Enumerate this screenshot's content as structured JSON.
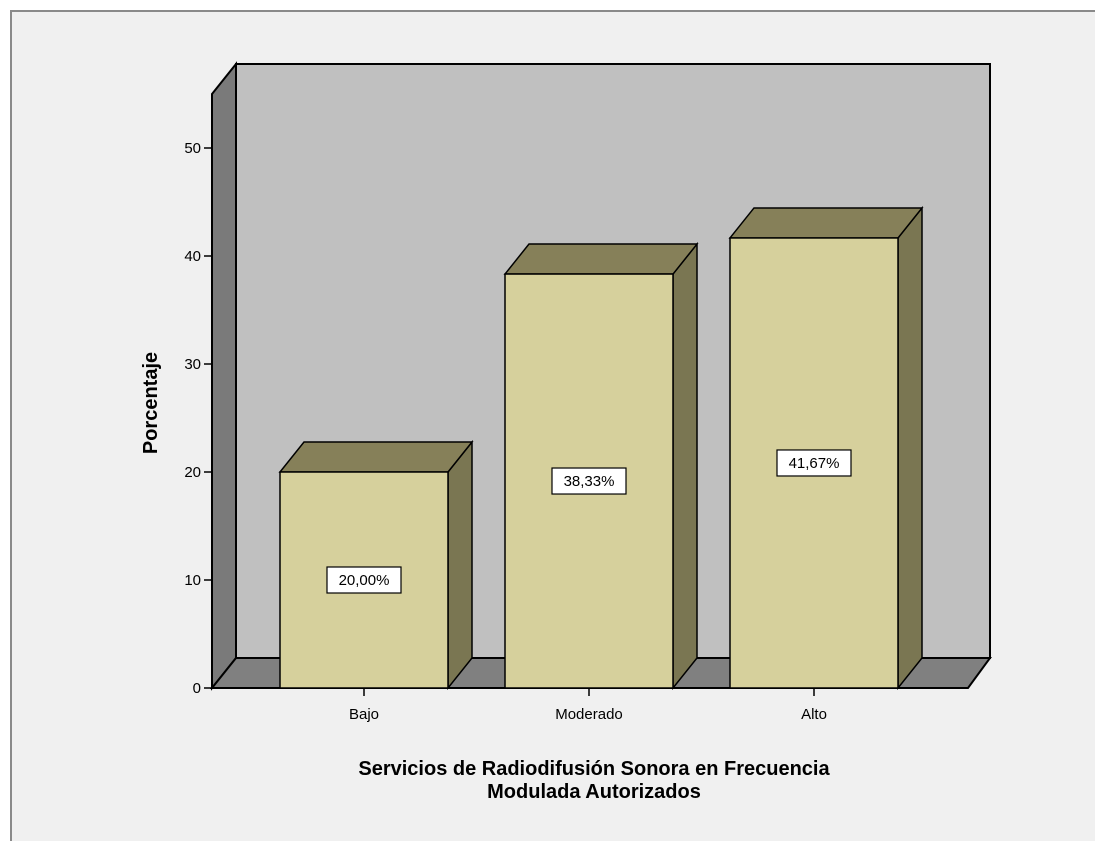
{
  "chart_data": {
    "type": "bar",
    "style": "3d",
    "categories": [
      "Bajo",
      "Moderado",
      "Alto"
    ],
    "values": [
      20.0,
      38.33,
      41.67
    ],
    "value_labels": [
      "20,00%",
      "38,33%",
      "41,67%"
    ],
    "xlabel_lines": [
      "Servicios de Radiodifusión Sonora en Frecuencia",
      "Modulada Autorizados"
    ],
    "ylabel": "Porcentaje",
    "ylim": [
      0,
      50
    ],
    "yticks": [
      0,
      10,
      20,
      30,
      40,
      50
    ],
    "grid": false,
    "legend": "none",
    "colors": {
      "bar_front": "#d6d09c",
      "bar_top": "#868059",
      "bar_side": "#7a7652",
      "back_wall": "#c0c0c0",
      "side_wall": "#7a7a7a",
      "floor": "#808080",
      "frame_background": "#f0f0f0"
    }
  }
}
